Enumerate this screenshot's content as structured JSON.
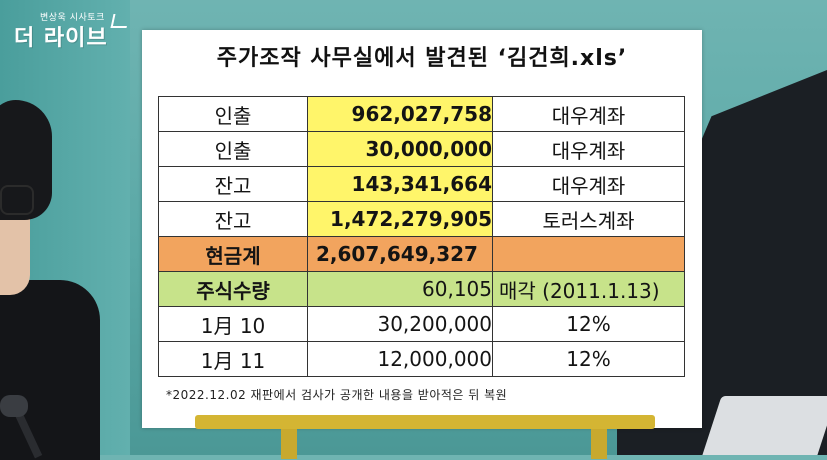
{
  "logo": {
    "small_text": "변상욱 시사토크",
    "big_text": "더 라이브"
  },
  "board": {
    "title": "주가조작 사무실에서 발견된 ‘김건희.xls’",
    "rows": [
      {
        "label": "인출",
        "amount": "962,027,758",
        "note": "대우계좌"
      },
      {
        "label": "인출",
        "amount": "30,000,000",
        "note": "대우계좌"
      },
      {
        "label": "잔고",
        "amount": "143,341,664",
        "note": "대우계좌"
      },
      {
        "label": "잔고",
        "amount": "1,472,279,905",
        "note": "토러스계좌"
      },
      {
        "label": "현금계",
        "amount": "2,607,649,327",
        "note": ""
      },
      {
        "label": "주식수량",
        "amount": "60,105",
        "note": "매각 (2011.1.13)"
      },
      {
        "label": "1月 10",
        "amount": "30,200,000",
        "note": "12%"
      },
      {
        "label": "1月 11",
        "amount": "12,000,000",
        "note": "12%"
      }
    ],
    "footnote": "*2022.12.02 재판에서 검사가 공개한 내용을 받아적은 뒤 복원"
  },
  "colors": {
    "background": "#5aa8a6",
    "amount_highlight": "#fff56a",
    "total_row": "#f2a45e",
    "stock_row": "#c7e38a",
    "easel": "#d4b533"
  }
}
